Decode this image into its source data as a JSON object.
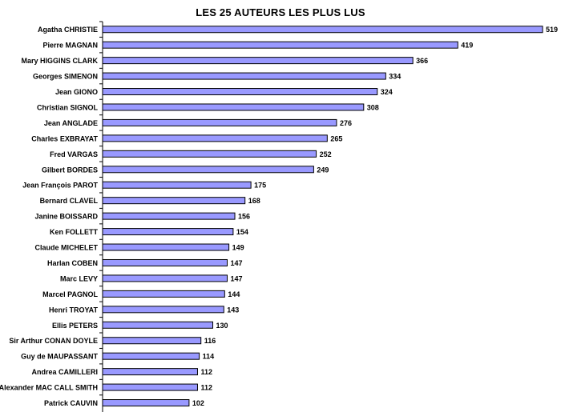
{
  "chart_data": {
    "type": "bar",
    "orientation": "horizontal",
    "title": "LES 25 AUTEURS LES PLUS LUS",
    "xlabel": "",
    "ylabel": "",
    "xlim": [
      0,
      519
    ],
    "grid": false,
    "legend": "none",
    "bar_color": "#9999ff",
    "bar_edge_color": "#000000",
    "categories": [
      "Agatha CHRISTIE",
      "Pierre MAGNAN",
      "Mary HIGGINS CLARK",
      "Georges SIMENON",
      "Jean GIONO",
      "Christian SIGNOL",
      "Jean ANGLADE",
      "Charles EXBRAYAT",
      "Fred VARGAS",
      "Gilbert BORDES",
      "Jean François PAROT",
      "Bernard CLAVEL",
      "Janine BOISSARD",
      "Ken FOLLETT",
      "Claude MICHELET",
      "Harlan COBEN",
      "Marc LEVY",
      "Marcel PAGNOL",
      "Henri TROYAT",
      "Ellis PETERS",
      "Sir Arthur CONAN DOYLE",
      "Guy de MAUPASSANT",
      "Andrea CAMILLERI",
      "Alexander MAC CALL SMITH",
      "Patrick CAUVIN"
    ],
    "values": [
      519,
      419,
      366,
      334,
      324,
      308,
      276,
      265,
      252,
      249,
      175,
      168,
      156,
      154,
      149,
      147,
      147,
      144,
      143,
      130,
      116,
      114,
      112,
      112,
      102
    ]
  }
}
